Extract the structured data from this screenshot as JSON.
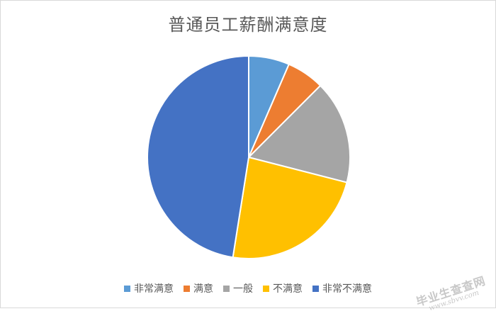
{
  "chart_data": {
    "type": "pie",
    "title": "普通员工薪酬满意度",
    "categories": [
      "非常满意",
      "满意",
      "一般",
      "不满意",
      "非常不满意"
    ],
    "values": [
      6.5,
      6.0,
      16.5,
      23.5,
      47.5
    ],
    "unit": "%",
    "colors": [
      "#5B9BD5",
      "#ED7D31",
      "#A5A5A5",
      "#FFC000",
      "#4472C4"
    ],
    "start_angle": "12 o'clock",
    "direction": "clockwise",
    "legend": "bottom"
  },
  "watermark": {
    "main": "毕业生查查网",
    "sub": "www.sbvv.com"
  }
}
